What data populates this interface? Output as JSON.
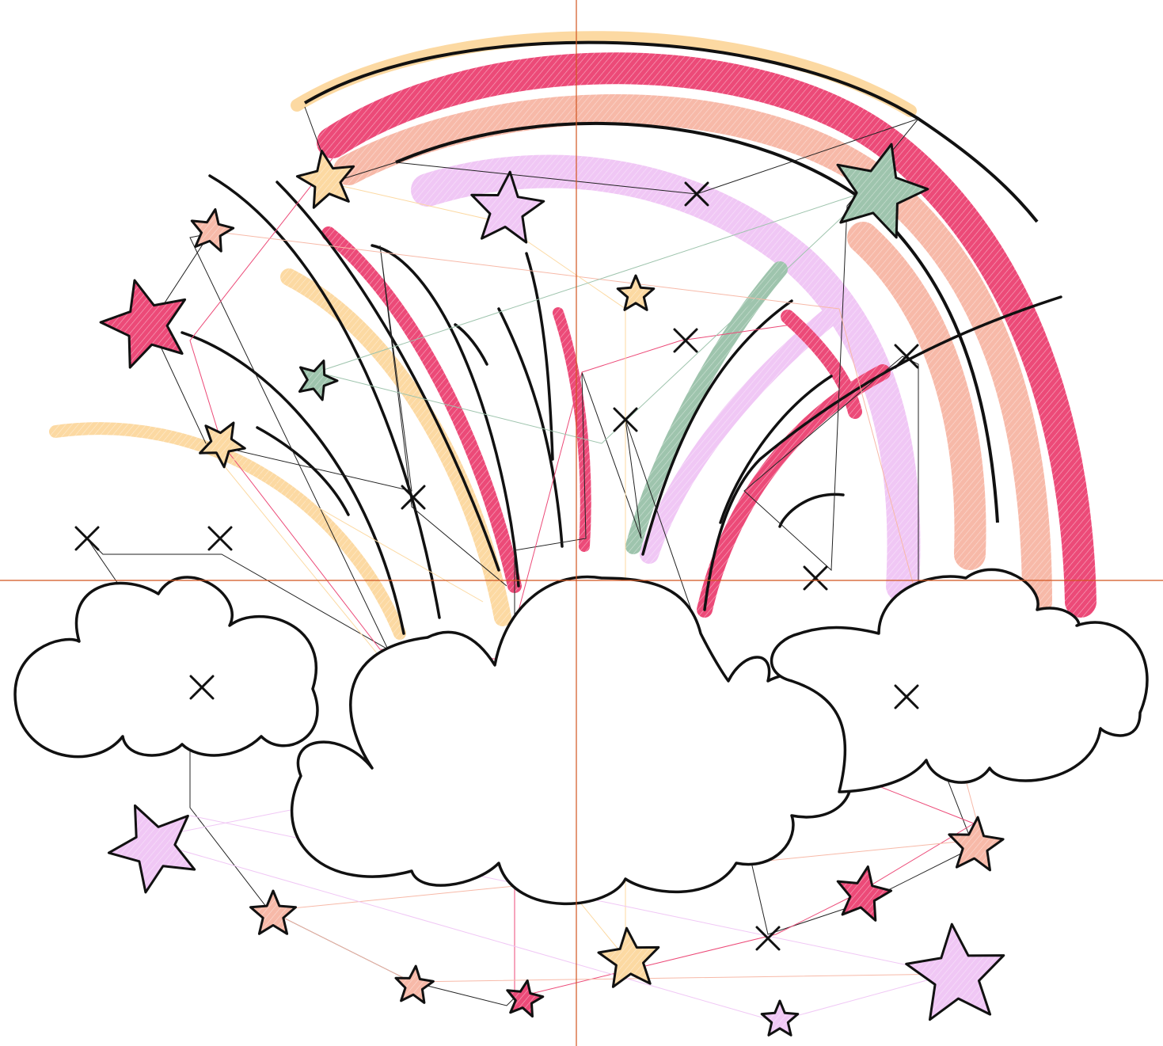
{
  "colors": {
    "background": "#ffffff",
    "outline": "#111111",
    "guide_line": "#d2551f",
    "pink": "#ec4a78",
    "peach": "#f7b9a8",
    "yellow": "#fcd9a2",
    "lilac": "#f0c7f5",
    "sage": "#9ec4ad",
    "travel_line": "#222222"
  },
  "icons": {
    "star": "star-icon",
    "cloud": "cloud-icon",
    "cross_marker": "cross-marker-icon"
  }
}
